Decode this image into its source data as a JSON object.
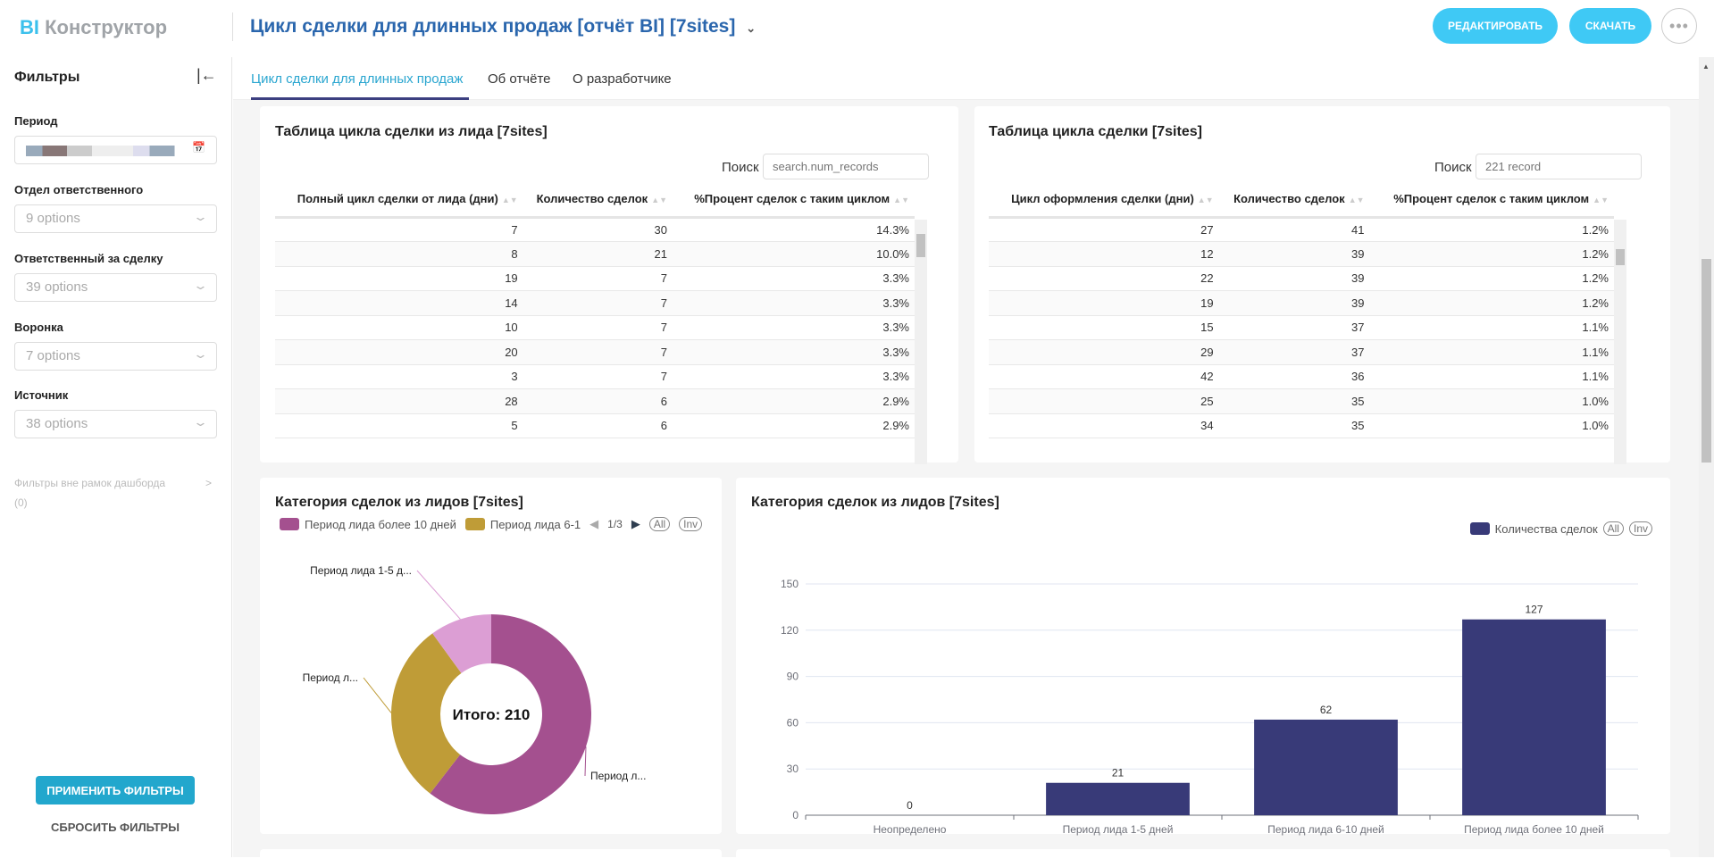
{
  "header": {
    "logo_bi": "BI",
    "logo_text": "Конструктор",
    "title": "Цикл сделки для длинных продаж [отчёт BI] [7sites]",
    "edit": "РЕДАКТИРОВАТЬ",
    "download": "СКАЧАТЬ",
    "more": "•••"
  },
  "sidebar": {
    "title": "Фильтры",
    "filters": [
      {
        "label": "Период",
        "value": ""
      },
      {
        "label": "Отдел ответственного",
        "value": "9 options"
      },
      {
        "label": "Ответственный за сделку",
        "value": "39 options"
      },
      {
        "label": "Воронка",
        "value": "7 options"
      },
      {
        "label": "Источник",
        "value": "38 options"
      }
    ],
    "outside": "Фильтры вне рамок дашборда",
    "outside_count": "(0)",
    "apply": "ПРИМЕНИТЬ ФИЛЬТРЫ",
    "reset": "СБРОСИТЬ ФИЛЬТРЫ"
  },
  "tabs": [
    "Цикл сделки для длинных продаж",
    "Об отчёте",
    "О разработчике"
  ],
  "table1": {
    "title": "Таблица цикла сделки из лида [7sites]",
    "search_label": "Поиск",
    "search_placeholder": "search.num_records",
    "columns": [
      "Полный цикл сделки от лида (дни)",
      "Количество сделок",
      "%Процент сделок с таким циклом"
    ],
    "rows": [
      [
        "7",
        "30",
        "14.3%"
      ],
      [
        "8",
        "21",
        "10.0%"
      ],
      [
        "19",
        "7",
        "3.3%"
      ],
      [
        "14",
        "7",
        "3.3%"
      ],
      [
        "10",
        "7",
        "3.3%"
      ],
      [
        "20",
        "7",
        "3.3%"
      ],
      [
        "3",
        "7",
        "3.3%"
      ],
      [
        "28",
        "6",
        "2.9%"
      ],
      [
        "5",
        "6",
        "2.9%"
      ]
    ]
  },
  "table2": {
    "title": "Таблица цикла сделки [7sites]",
    "search_label": "Поиск",
    "search_placeholder": "221 record",
    "columns": [
      "Цикл оформления сделки (дни)",
      "Количество сделок",
      "%Процент сделок с таким циклом"
    ],
    "rows": [
      [
        "27",
        "41",
        "1.2%"
      ],
      [
        "12",
        "39",
        "1.2%"
      ],
      [
        "22",
        "39",
        "1.2%"
      ],
      [
        "19",
        "39",
        "1.2%"
      ],
      [
        "15",
        "37",
        "1.1%"
      ],
      [
        "29",
        "37",
        "1.1%"
      ],
      [
        "42",
        "36",
        "1.1%"
      ],
      [
        "25",
        "35",
        "1.0%"
      ],
      [
        "34",
        "35",
        "1.0%"
      ]
    ]
  },
  "chart_data": [
    {
      "type": "pie",
      "title": "Категория сделок из лидов [7sites]",
      "center_label": "Итого: 210",
      "legend": {
        "items": [
          "Период лида более 10 дней",
          "Период лида 6-1"
        ],
        "page": "1/3",
        "all": "All",
        "inv": "Inv"
      },
      "slices": [
        {
          "name": "Период лида более 10 дней",
          "label": "Период л...",
          "value": 127,
          "color": "#a4508f"
        },
        {
          "name": "Период лида 6-10 дней",
          "label": "Период л...",
          "value": 62,
          "color": "#bf9c37"
        },
        {
          "name": "Период лида 1-5 дней",
          "label": "Период лида 1-5 д...",
          "value": 21,
          "color": "#dc9ed4"
        }
      ]
    },
    {
      "type": "bar",
      "title": "Категория сделок из лидов [7sites]",
      "legend": {
        "series": "Количества сделок",
        "all": "All",
        "inv": "Inv"
      },
      "categories": [
        "Неопределено",
        "Период лида 1-5 дней",
        "Период лида 6-10 дней",
        "Период лида более 10 дней"
      ],
      "values": [
        0,
        21,
        62,
        127
      ],
      "ylim": [
        0,
        150
      ],
      "yticks": [
        0,
        30,
        60,
        90,
        120,
        150
      ],
      "color": "#383a78"
    }
  ]
}
